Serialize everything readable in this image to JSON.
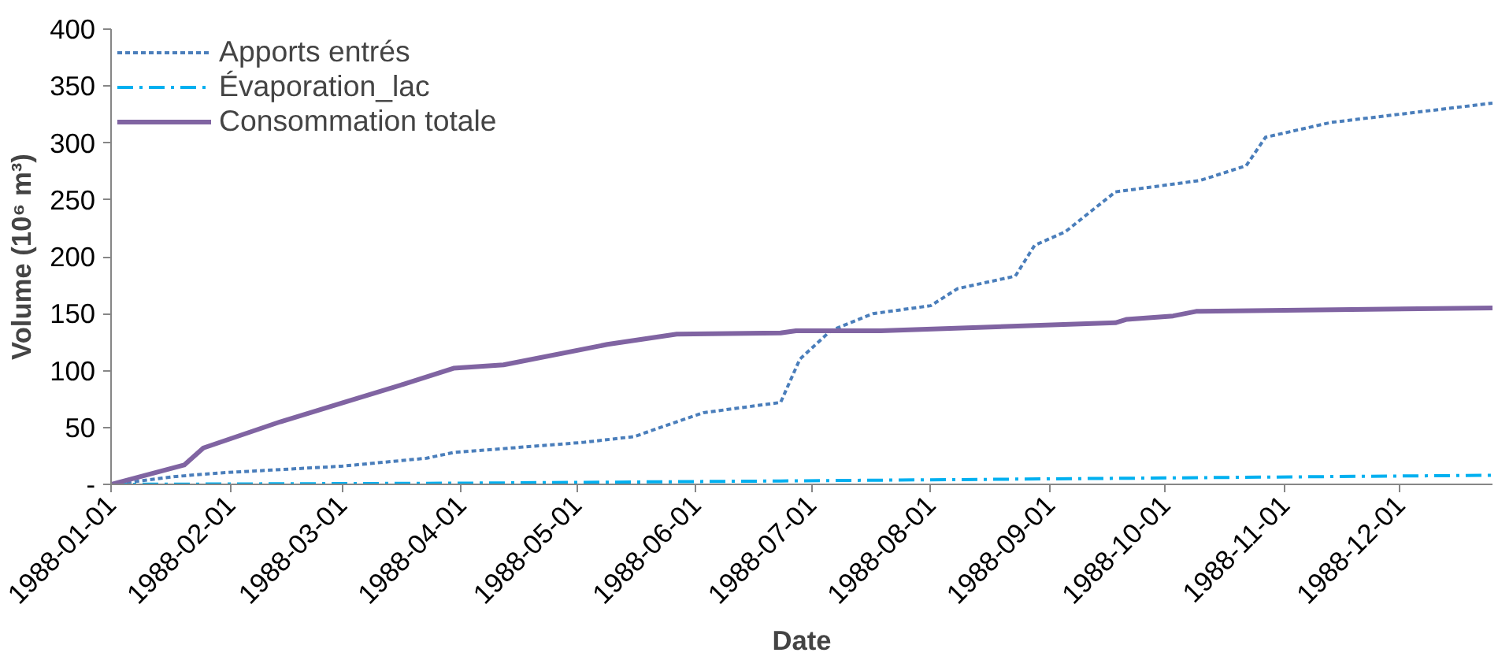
{
  "chart_data": {
    "type": "line",
    "xlabel": "Date",
    "ylabel": "Volume (10⁶ m³)",
    "xlim": [
      "1988-01-01",
      "1988-12-25"
    ],
    "ylim": [
      0,
      400
    ],
    "xticks": [
      "1988-01-01",
      "1988-02-01",
      "1988-03-01",
      "1988-04-01",
      "1988-05-01",
      "1988-06-01",
      "1988-07-01",
      "1988-08-01",
      "1988-09-01",
      "1988-10-01",
      "1988-11-01",
      "1988-12-01"
    ],
    "yticks": [
      {
        "value": 0,
        "label": "-"
      },
      50,
      100,
      150,
      200,
      250,
      300,
      350,
      400
    ],
    "grid": false,
    "legend": "top left",
    "series": [
      {
        "name": "Apports entrés",
        "color": "#4a7ebb",
        "line_style": "dotted",
        "x": [
          "1988-01-01",
          "1988-01-18",
          "1988-01-29",
          "1988-03-01",
          "1988-03-23",
          "1988-03-30",
          "1988-05-03",
          "1988-05-16",
          "1988-05-27",
          "1988-06-03",
          "1988-06-23",
          "1988-06-28",
          "1988-07-06",
          "1988-07-17",
          "1988-08-01",
          "1988-08-08",
          "1988-08-23",
          "1988-08-28",
          "1988-09-05",
          "1988-09-18",
          "1988-10-10",
          "1988-10-22",
          "1988-10-27",
          "1988-11-13",
          "1988-12-25"
        ],
        "values": [
          0,
          7,
          10,
          16,
          23,
          28,
          37,
          42,
          55,
          63,
          72,
          110,
          135,
          150,
          157,
          172,
          183,
          210,
          222,
          257,
          267,
          280,
          305,
          318,
          335
        ]
      },
      {
        "name": "Évaporation_lac",
        "color": "#00b0f0",
        "line_style": "dashdot",
        "x": [
          "1988-01-01",
          "1988-03-31",
          "1988-06-23",
          "1988-09-07",
          "1988-12-25"
        ],
        "values": [
          0,
          1,
          3,
          5,
          8
        ]
      },
      {
        "name": "Consommation totale",
        "color": "#8064a2",
        "line_style": "solid",
        "x": [
          "1988-01-01",
          "1988-01-20",
          "1988-01-25",
          "1988-02-14",
          "1988-03-17",
          "1988-03-30",
          "1988-04-12",
          "1988-05-09",
          "1988-05-27",
          "1988-06-23",
          "1988-06-27",
          "1988-07-19",
          "1988-09-18",
          "1988-09-21",
          "1988-10-03",
          "1988-10-09",
          "1988-12-25"
        ],
        "values": [
          0,
          17,
          32,
          55,
          88,
          102,
          105,
          123,
          132,
          133,
          135,
          135,
          142,
          145,
          148,
          152,
          155
        ]
      }
    ]
  }
}
